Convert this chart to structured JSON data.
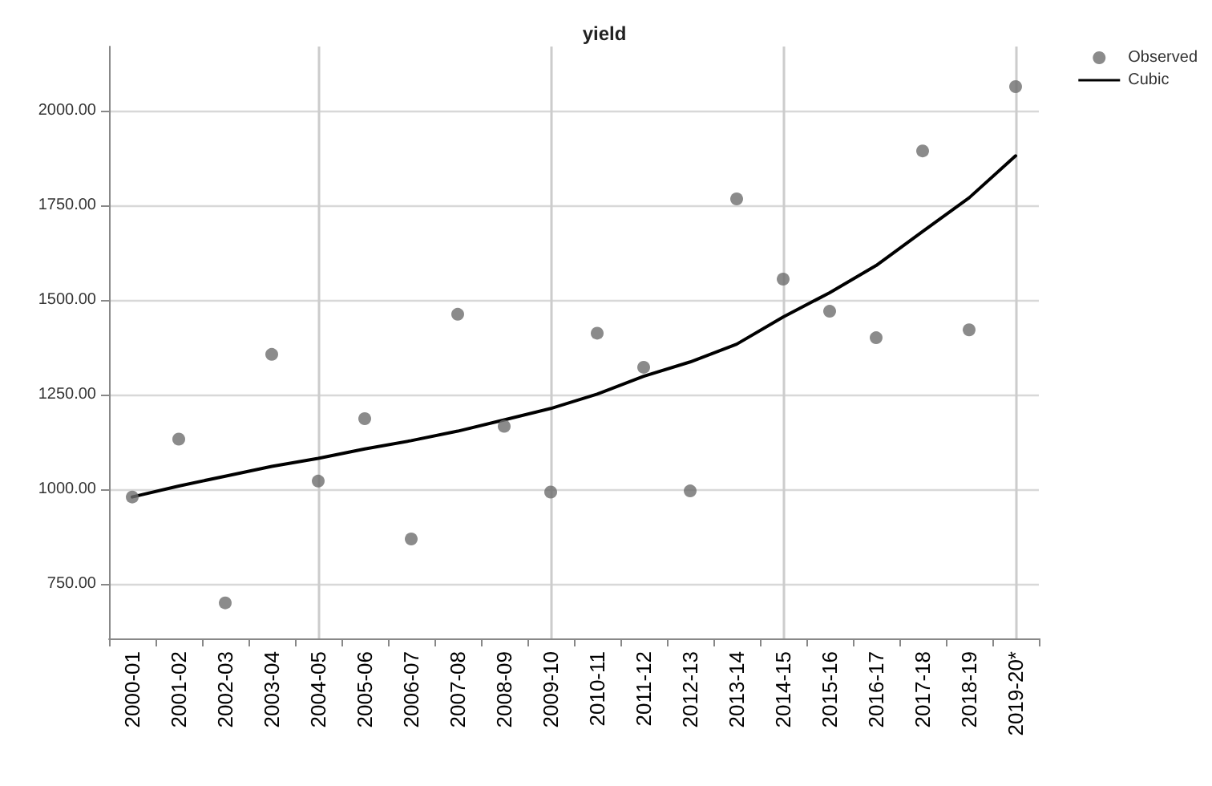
{
  "chart_data": {
    "type": "scatter",
    "title": "yield",
    "categories": [
      "2000-01",
      "2001-02",
      "2002-03",
      "2003-04",
      "2004-05",
      "2005-06",
      "2006-07",
      "2007-08",
      "2008-09",
      "2009-10",
      "2010-11",
      "2011-12",
      "2012-13",
      "2013-14",
      "2014-15",
      "2015-16",
      "2016-17",
      "2017-18",
      "2018-19",
      "2019-20*"
    ],
    "series": [
      {
        "name": "Observed",
        "marker": "circle",
        "color": "#6e6e6e",
        "values": [
          979,
          1132,
          699,
          1356,
          1021,
          1186,
          868,
          1462,
          1166,
          992,
          1412,
          1322,
          995,
          1767,
          1555,
          1470,
          1400,
          1894,
          1421,
          2064
        ]
      },
      {
        "name": "Cubic",
        "type": "line",
        "marker": "none",
        "line_style": "solid",
        "color": "#000000",
        "values": [
          979,
          1008,
          1034,
          1060,
          1081,
          1106,
          1128,
          1153,
          1183,
          1213,
          1251,
          1298,
          1336,
          1383,
          1455,
          1519,
          1591,
          1681,
          1770,
          1881
        ]
      }
    ],
    "ylim": [
      605,
      2170
    ],
    "yticks": [
      {
        "value": 750,
        "label": "750.00"
      },
      {
        "value": 1000,
        "label": "1000.00"
      },
      {
        "value": 1250,
        "label": "1250.00"
      },
      {
        "value": 1500,
        "label": "1500.00"
      },
      {
        "value": 1750,
        "label": "1750.00"
      },
      {
        "value": 2000,
        "label": "2000.00"
      }
    ],
    "grid": true,
    "legend": "top right"
  }
}
